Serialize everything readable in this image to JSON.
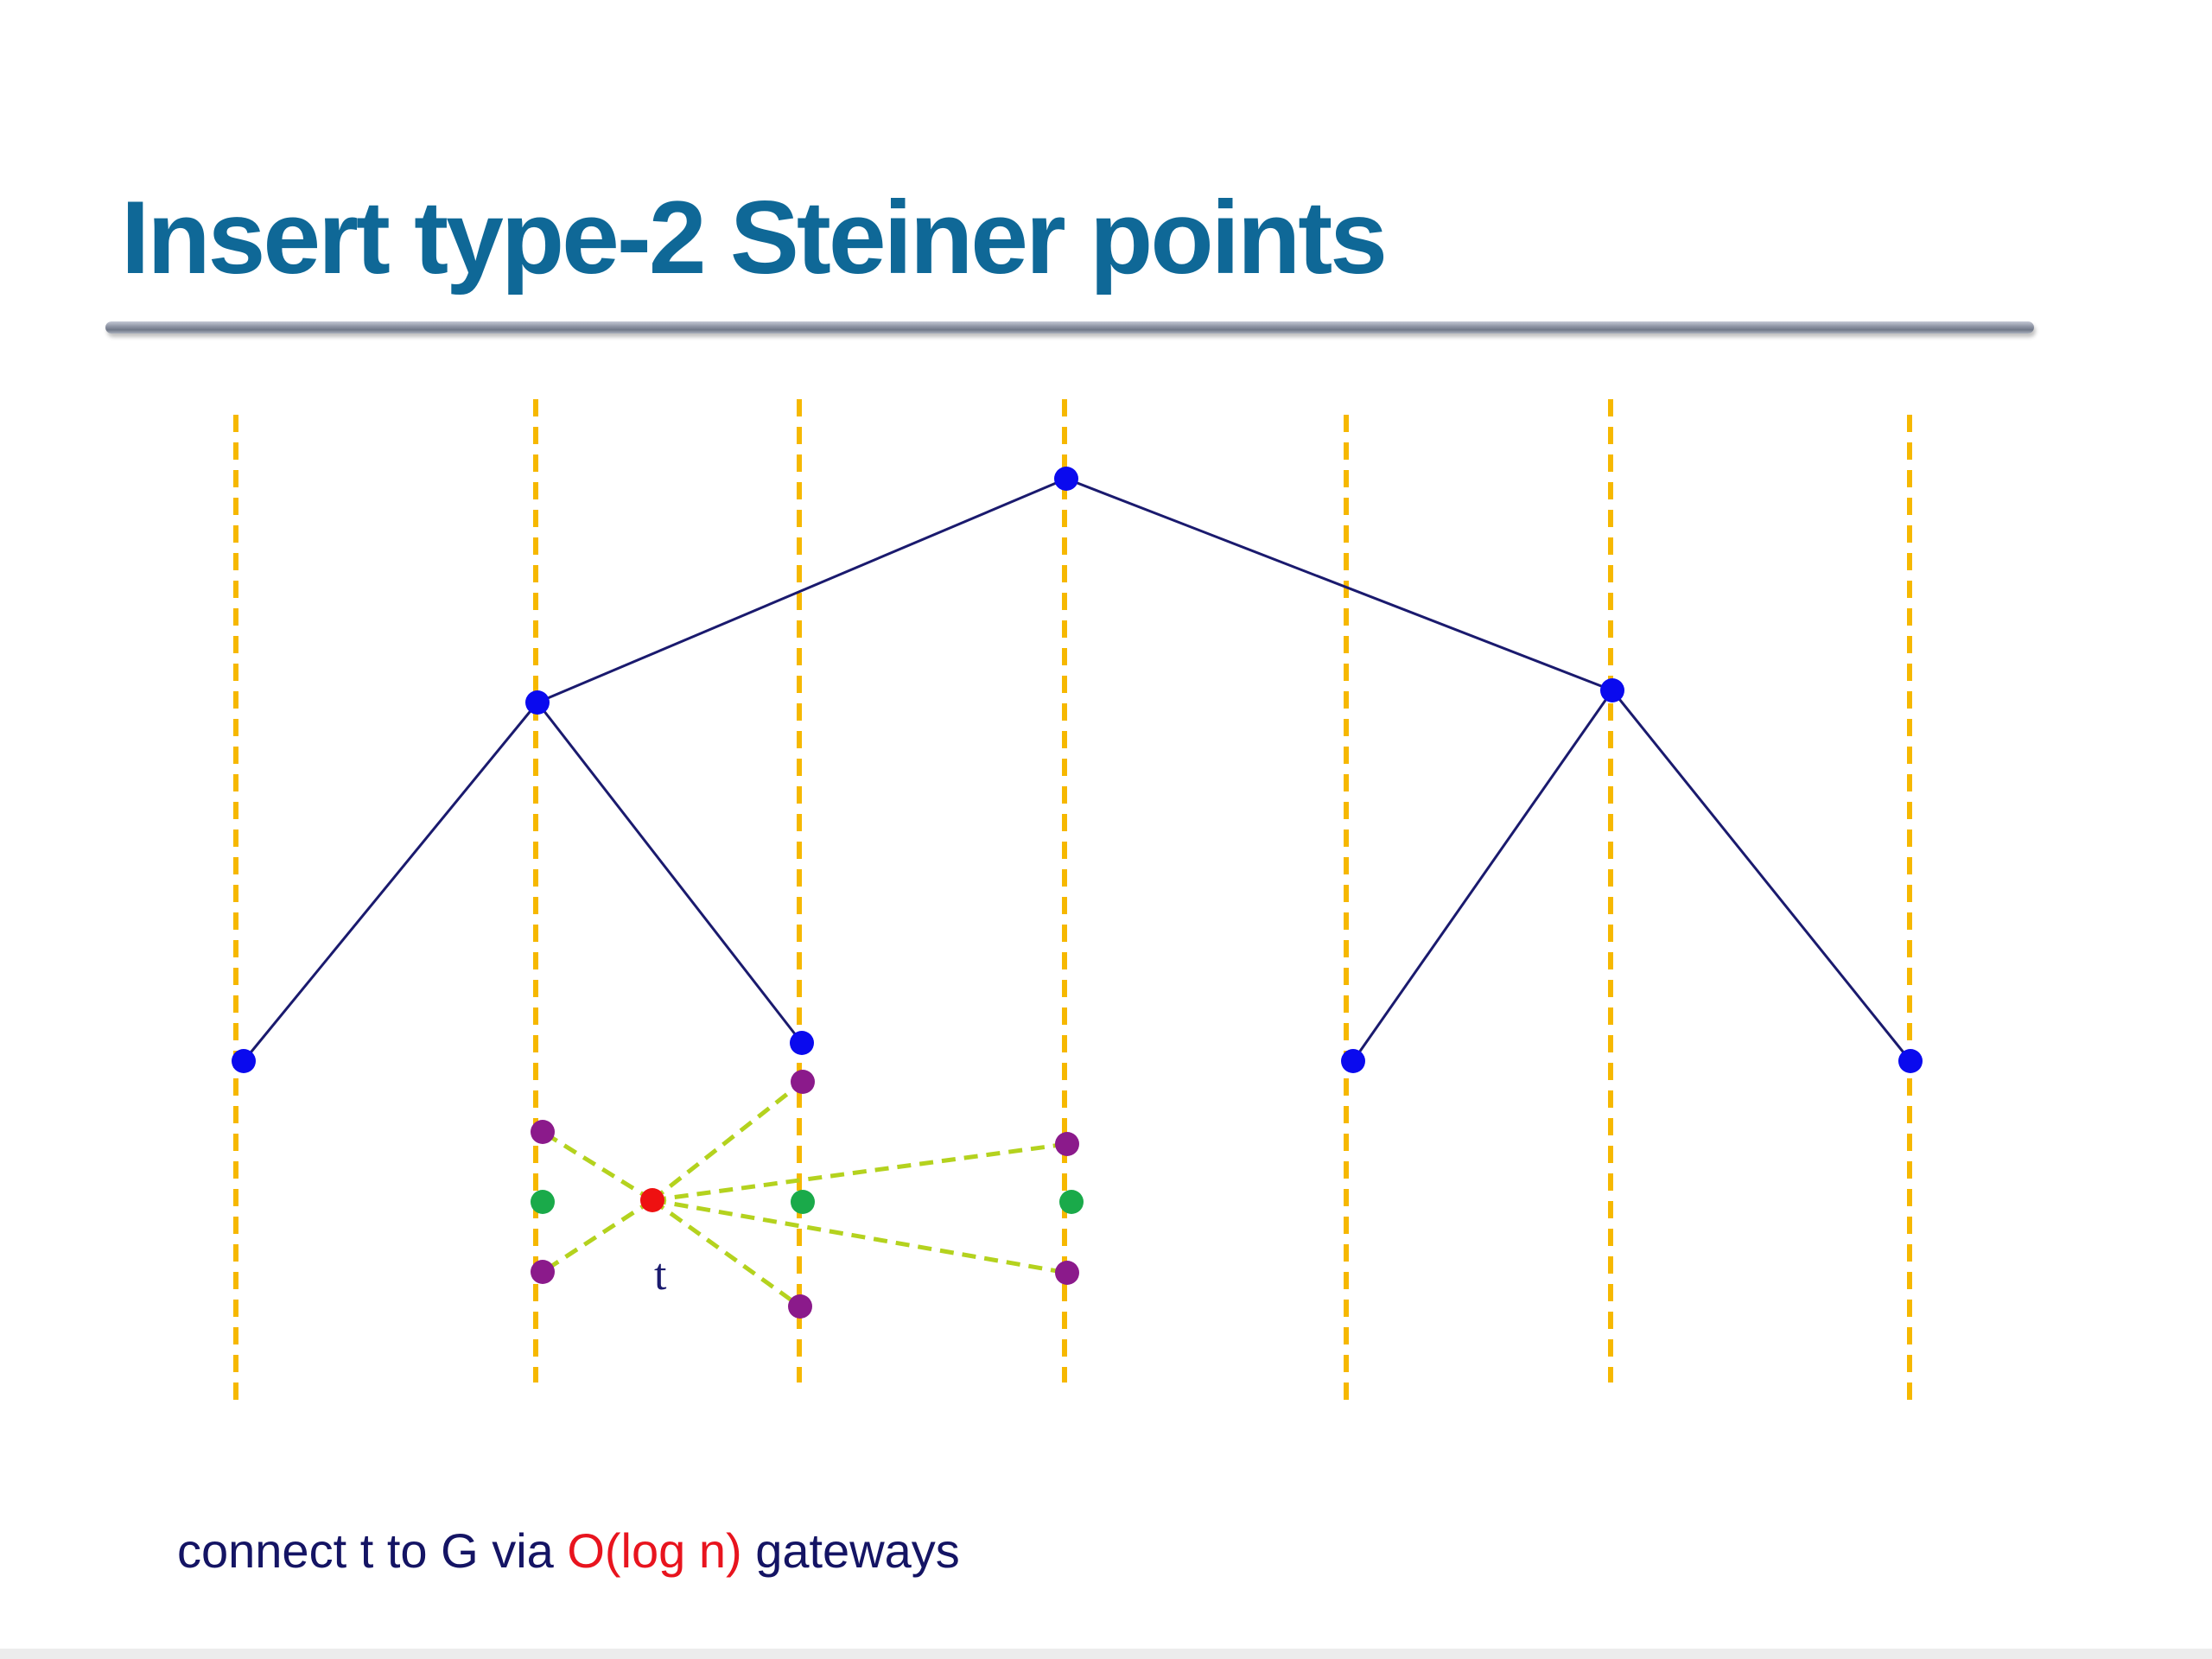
{
  "slide": {
    "title": "Insert type-2 Steiner points",
    "point_label": "t",
    "caption": {
      "before": "connect t to G via ",
      "highlight": "O(log n)",
      "after": " gateways"
    }
  },
  "colors": {
    "title": "#0f6897",
    "guide_line": "#f6b800",
    "tree_edge": "#1a1a6e",
    "tree_node": "#0a0aee",
    "steiner_point": "#8b1a8b",
    "green_point": "#1aaa4a",
    "query_point": "#ee1111",
    "gateway_edge": "#b4d21e",
    "caption_text": "#141464",
    "caption_highlight": "#e8141e"
  }
}
